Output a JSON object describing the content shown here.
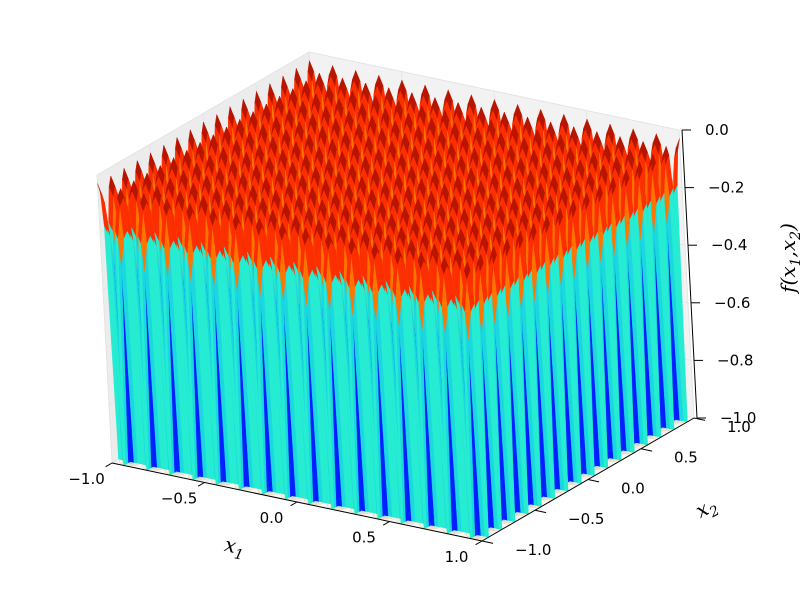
{
  "chart_data": {
    "type": "surface3d",
    "projection": "3d surface plot with filled contour projected onto the floor",
    "function": "f(x1,x2) = -(0.9 + cos-based ripple) — periodic array of deep wells over [-1,1]^2",
    "xlabel": "x1",
    "ylabel": "x2",
    "zlabel": "f(x1,x2)",
    "xlim": [
      -1.0,
      1.0
    ],
    "ylim": [
      -1.0,
      1.0
    ],
    "zlim": [
      -1.0,
      0.0
    ],
    "x_ticks": [
      "−1.0",
      "−0.5",
      "0.0",
      "0.5",
      "1.0"
    ],
    "y_ticks": [
      "−1.0",
      "−0.5",
      "0.0",
      "0.5",
      "1.0"
    ],
    "z_ticks": [
      "−1.0",
      "−0.8",
      "−0.6",
      "−0.4",
      "−0.2",
      "0.0"
    ],
    "x_tick_values": [
      -1.0,
      -0.5,
      0.0,
      0.5,
      1.0
    ],
    "y_tick_values": [
      -1.0,
      -0.5,
      0.0,
      0.5,
      1.0
    ],
    "z_tick_values": [
      -1.0,
      -0.8,
      -0.6,
      -0.4,
      -0.2,
      0.0
    ],
    "wells_per_axis": 16,
    "colormap": "jet",
    "colormap_stops": [
      "#00007f",
      "#0000ff",
      "#00a0ff",
      "#2fffc7",
      "#c7ff2f",
      "#ffc400",
      "#ff3000",
      "#7f0000"
    ],
    "grid": true
  }
}
